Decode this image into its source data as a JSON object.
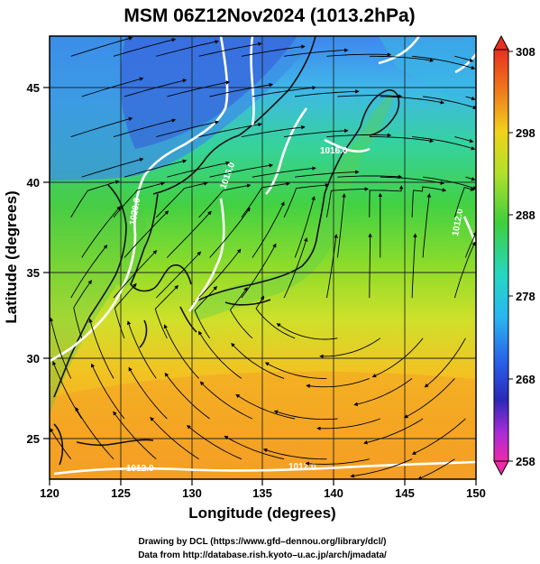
{
  "title": "MSM 06Z12Nov2024 (1013.2hPa)",
  "xlabel": "Longitude (degrees)",
  "ylabel": "Latitude  (degrees)",
  "x_ticks": [
    "120",
    "125",
    "130",
    "135",
    "140",
    "145",
    "150"
  ],
  "y_ticks": [
    "25",
    "30",
    "35",
    "40",
    "45"
  ],
  "colorbar": {
    "ticks": [
      "308",
      "298",
      "288",
      "278",
      "268",
      "258"
    ],
    "range": [
      258,
      308
    ]
  },
  "contour_labels": [
    "1016.0",
    "1016.0",
    "1020.0",
    "1012.0",
    "1012.0",
    "1012.0"
  ],
  "credits": [
    "Drawing by DCL (https://www.gfd–dennou.org/library/dcl/)",
    "Data from http://database.rish.kyoto–u.ac.jp/arch/jmadata/"
  ],
  "chart_data": {
    "type": "heatmap",
    "title": "MSM 06Z12Nov2024 (1013.2hPa)",
    "xlabel": "Longitude (degrees)",
    "ylabel": "Latitude  (degrees)",
    "xlim": [
      120,
      150
    ],
    "ylim": [
      22.5,
      47.5
    ],
    "colorbar_range": [
      258,
      308
    ],
    "overlays": [
      "streamlines",
      "coastlines",
      "isobar contours",
      "lat/lon grid"
    ]
  }
}
